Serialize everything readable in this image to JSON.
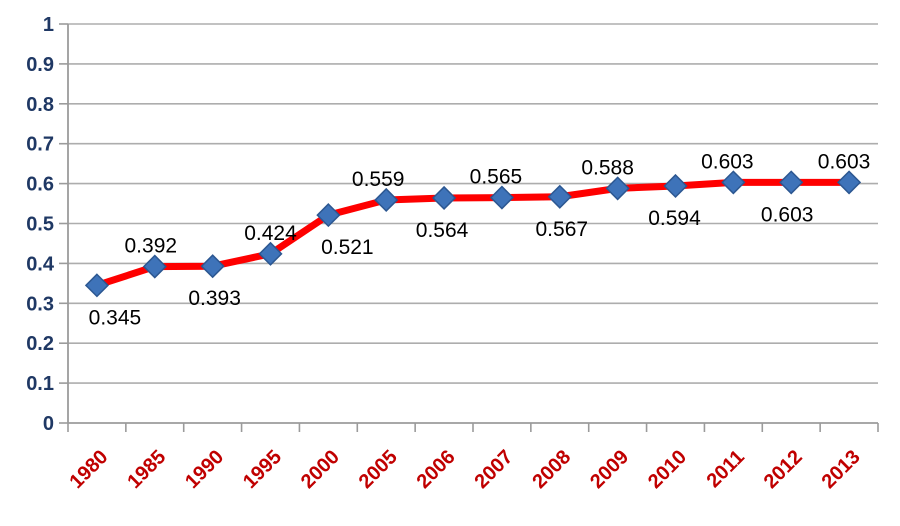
{
  "chart_data": {
    "type": "line",
    "title": "",
    "xlabel": "",
    "ylabel": "",
    "categories": [
      "1980",
      "1985",
      "1990",
      "1995",
      "2000",
      "2005",
      "2006",
      "2007",
      "2008",
      "2009",
      "2010",
      "2011",
      "2012",
      "2013"
    ],
    "series": [
      {
        "name": "series-1",
        "values": [
          0.345,
          0.392,
          0.393,
          0.424,
          0.521,
          0.559,
          0.564,
          0.565,
          0.567,
          0.588,
          0.594,
          0.603,
          0.603,
          0.603
        ],
        "data_labels": [
          "0.345",
          "0.392",
          "0.393",
          "0.424",
          "0.521",
          "0.559",
          "0.564",
          "0.565",
          "0.567",
          "0.588",
          "0.594",
          "0.603",
          "0.603",
          "0.603"
        ],
        "label_positions": [
          "below",
          "above",
          "below",
          "above",
          "below",
          "above",
          "below",
          "above",
          "below",
          "above",
          "below",
          "above",
          "below",
          "above"
        ],
        "label_dx": [
          18,
          -4,
          2,
          0,
          19,
          -8,
          -2,
          -6,
          2,
          -10,
          -1,
          -6,
          -4,
          -5
        ]
      }
    ],
    "ylim": [
      0,
      1
    ],
    "ytick_labels": [
      "0",
      "0.1",
      "0.2",
      "0.3",
      "0.4",
      "0.5",
      "0.6",
      "0.7",
      "0.8",
      "0.9",
      "1"
    ],
    "grid": true,
    "legend": "none",
    "colors": {
      "line": "#FE0000",
      "marker_fill": "#3E73B9",
      "marker_stroke": "#2C5791",
      "gridline": "#ADADAD",
      "axis": "#9B9B9B",
      "y_tick_label": "#1F3864",
      "x_tick_label": "#C00000",
      "data_label": "#000000",
      "background": "#FFFFFF"
    }
  }
}
